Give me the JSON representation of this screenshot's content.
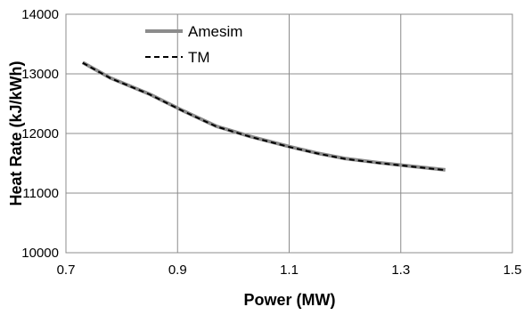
{
  "chart_data": {
    "type": "line",
    "xlabel": "Power (MW)",
    "ylabel": "Heat Rate (kJ/kWh)",
    "xlim": [
      0.7,
      1.5
    ],
    "ylim": [
      10000,
      14000
    ],
    "xticks": [
      "0.7",
      "0.9",
      "1.1",
      "1.3",
      "1.5"
    ],
    "yticks": [
      "10000",
      "11000",
      "12000",
      "13000",
      "14000"
    ],
    "grid": true,
    "legend_position": "top-left",
    "series": [
      {
        "name": "Amesim",
        "color": "#8c8c8c",
        "style": "solid",
        "x": [
          0.73,
          0.78,
          0.85,
          0.91,
          0.97,
          1.03,
          1.1,
          1.15,
          1.2,
          1.26,
          1.32,
          1.38
        ],
        "y": [
          13190,
          12930,
          12660,
          12380,
          12120,
          11950,
          11780,
          11670,
          11580,
          11510,
          11450,
          11390
        ]
      },
      {
        "name": "TM",
        "color": "#000000",
        "style": "dashed",
        "x": [
          0.73,
          0.78,
          0.85,
          0.91,
          0.97,
          1.03,
          1.1,
          1.15,
          1.2,
          1.26,
          1.32,
          1.38
        ],
        "y": [
          13185,
          12925,
          12655,
          12375,
          12115,
          11945,
          11775,
          11665,
          11575,
          11505,
          11445,
          11385
        ]
      }
    ]
  }
}
